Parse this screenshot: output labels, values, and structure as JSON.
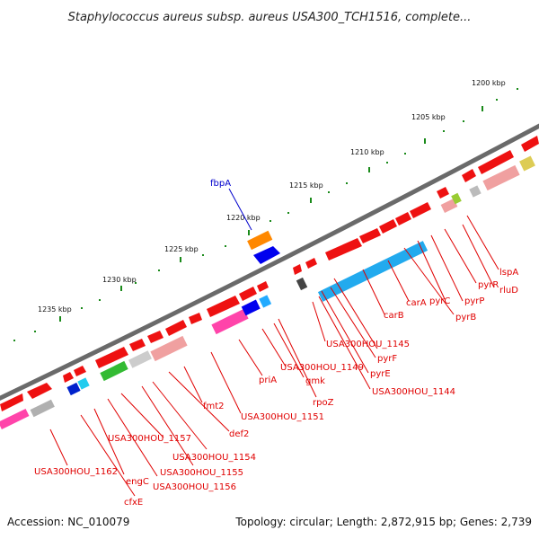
{
  "title": "Staphylococcus aureus subsp. aureus USA300_TCH1516, complete...",
  "footer": {
    "accession": "Accession: NC_010079",
    "topology": "Topology: circular; Length: 2,872,915 bp; Genes: 2,739"
  },
  "colors": {
    "backbone": "#808080",
    "forward": "#ee0000",
    "label_red": "#e00000",
    "label_blue": "#0000cc",
    "tick": "#1a7a1a"
  },
  "ticks": [
    {
      "label": "1200 kbp"
    },
    {
      "label": "1205 kbp"
    },
    {
      "label": "1210 kbp"
    },
    {
      "label": "1215 kbp"
    },
    {
      "label": "1220 kbp"
    },
    {
      "label": "1225 kbp"
    },
    {
      "label": "1230 kbp"
    },
    {
      "label": "1235 kbp"
    }
  ],
  "genes": [
    {
      "label": "fbpA",
      "color": "blue"
    },
    {
      "label": "lspA"
    },
    {
      "label": "rluD"
    },
    {
      "label": "pyrR"
    },
    {
      "label": "pyrP"
    },
    {
      "label": "pyrC"
    },
    {
      "label": "pyrB"
    },
    {
      "label": "carA"
    },
    {
      "label": "carB"
    },
    {
      "label": "USA300HOU_1145"
    },
    {
      "label": "pyrF"
    },
    {
      "label": "pyrE"
    },
    {
      "label": "USA300HOU_1144"
    },
    {
      "label": "USA300HOU_1149"
    },
    {
      "label": "gmk"
    },
    {
      "label": "rpoZ"
    },
    {
      "label": "priA"
    },
    {
      "label": "USA300HOU_1151"
    },
    {
      "label": "fmt2"
    },
    {
      "label": "def2"
    },
    {
      "label": "USA300HOU_1157"
    },
    {
      "label": "USA300HOU_1154"
    },
    {
      "label": "USA300HOU_1155"
    },
    {
      "label": "USA300HOU_1156"
    },
    {
      "label": "engC"
    },
    {
      "label": "USA300HOU_1162"
    },
    {
      "label": "cfxE"
    }
  ]
}
